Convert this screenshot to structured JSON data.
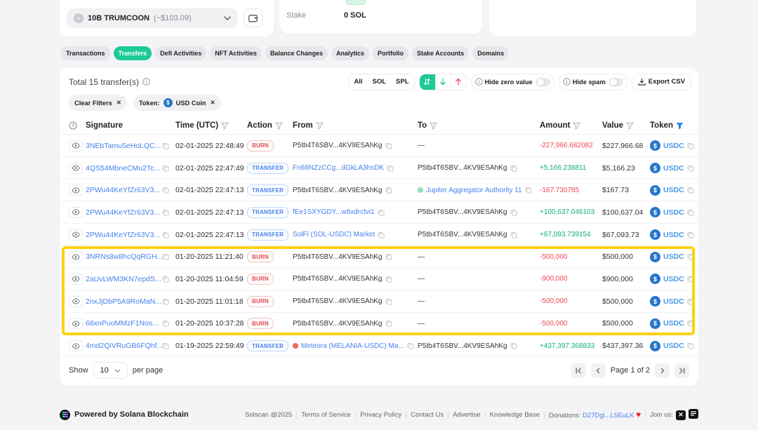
{
  "top": {
    "token_selector": {
      "name": "10B TRUMCOON",
      "value": "(~$103.09)"
    },
    "stake_label": "Stake",
    "stake_value": "0 SOL"
  },
  "tabs": [
    {
      "label": "Transactions",
      "active": false
    },
    {
      "label": "Transfers",
      "active": true
    },
    {
      "label": "Defi Activities",
      "active": false
    },
    {
      "label": "NFT Activities",
      "active": false
    },
    {
      "label": "Balance Changes",
      "active": false
    },
    {
      "label": "Analytics",
      "active": false
    },
    {
      "label": "Portfolio",
      "active": false
    },
    {
      "label": "Stake Accounts",
      "active": false
    },
    {
      "label": "Domains",
      "active": false
    }
  ],
  "controls": {
    "total_label": "Total 15 transfer(s)",
    "segments": [
      "All",
      "SOL",
      "SPL"
    ],
    "hide_zero_label": "Hide zero value",
    "hide_spam_label": "Hide spam",
    "export_label": "Export CSV"
  },
  "filters": {
    "clear_label": "Clear Filters",
    "token_chip_prefix": "Token:",
    "token_chip_value": "USD Coin"
  },
  "table": {
    "columns": [
      "Signature",
      "Time (UTC)",
      "Action",
      "From",
      "To",
      "Amount",
      "Value",
      "Token"
    ],
    "rows": [
      {
        "signature": "3NEbTamu5eHoLQC...",
        "time": "02-01-2025 22:48:49",
        "action": "BURN",
        "from": {
          "text": "P5tb4T6SBV...4KV9ESAhKg",
          "link": false
        },
        "to": {
          "dash": true
        },
        "amount": "-227,966.682082",
        "dir": "neg",
        "value": "$227,966.68",
        "token": "USDC",
        "highlight": false
      },
      {
        "signature": "4QS54MbneCMu2Tc...",
        "time": "02-01-2025 22:47:49",
        "action": "TRANSFER",
        "from": {
          "text": "Fn68NZzCCg...dGkLA3hsDK",
          "link": true
        },
        "to": {
          "text": "P5tb4T6SBV...4KV9ESAhKg",
          "link": false
        },
        "amount": "+5,166.238811",
        "dir": "pos",
        "value": "$5,166.23",
        "token": "USDC",
        "highlight": false
      },
      {
        "signature": "2PWu44KeYfZr63V3...",
        "time": "02-01-2025 22:47:13",
        "action": "TRANSFER",
        "from": {
          "text": "P5tb4T6SBV...4KV9ESAhKg",
          "link": false
        },
        "to": {
          "text": "Jupiter Aggregator Authority 11",
          "link": true,
          "dot": "#8de0c0"
        },
        "amount": "-167.730785",
        "dir": "neg",
        "value": "$167.73",
        "token": "USDC",
        "highlight": false
      },
      {
        "signature": "2PWu44KeYfZr63V3...",
        "time": "02-01-2025 22:47:13",
        "action": "TRANSFER",
        "from": {
          "text": "fEe1SXYGDY...w8xdrctvi1",
          "link": true
        },
        "to": {
          "text": "P5tb4T6SBV...4KV9ESAhKg",
          "link": false
        },
        "amount": "+100,637.046103",
        "dir": "pos",
        "value": "$100,637.04",
        "token": "USDC",
        "highlight": false
      },
      {
        "signature": "2PWu44KeYfZr63V3...",
        "time": "02-01-2025 22:47:13",
        "action": "TRANSFER",
        "from": {
          "text": "SolFi (SOL-USDC) Market",
          "link": true
        },
        "to": {
          "text": "P5tb4T6SBV...4KV9ESAhKg",
          "link": false
        },
        "amount": "+67,093.739154",
        "dir": "pos",
        "value": "$67,093.73",
        "token": "USDC",
        "highlight": false
      },
      {
        "signature": "3NRNs8w8hcQqRGH...",
        "time": "01-20-2025 11:21:40",
        "action": "BURN",
        "from": {
          "text": "P5tb4T6SBV...4KV9ESAhKg",
          "link": false
        },
        "to": {
          "dash": true
        },
        "amount": "-500,000",
        "dir": "neg",
        "value": "$500,000",
        "token": "USDC",
        "highlight": true
      },
      {
        "signature": "2aUvLWM3KN7epdS...",
        "time": "01-20-2025 11:04:59",
        "action": "BURN",
        "from": {
          "text": "P5tb4T6SBV...4KV9ESAhKg",
          "link": false
        },
        "to": {
          "dash": true
        },
        "amount": "-900,000",
        "dir": "neg",
        "value": "$900,000",
        "token": "USDC",
        "highlight": true
      },
      {
        "signature": "2nxJjDbP5A9RoMaN...",
        "time": "01-20-2025 11:01:18",
        "action": "BURN",
        "from": {
          "text": "P5tb4T6SBV...4KV9ESAhKg",
          "link": false
        },
        "to": {
          "dash": true
        },
        "amount": "-500,000",
        "dir": "neg",
        "value": "$500,000",
        "token": "USDC",
        "highlight": true
      },
      {
        "signature": "68xnPuoMMzF1Nos...",
        "time": "01-20-2025 10:37:28",
        "action": "BURN",
        "from": {
          "text": "P5tb4T6SBV...4KV9ESAhKg",
          "link": false
        },
        "to": {
          "dash": true
        },
        "amount": "-500,000",
        "dir": "neg",
        "value": "$500,000",
        "token": "USDC",
        "highlight": true
      },
      {
        "signature": "4md2QiVRuGB6FQhf...",
        "time": "01-19-2025 22:59:49",
        "action": "TRANSFER",
        "from": {
          "text": "Meteora (MELANIA-USDC) Ma...",
          "link": true,
          "dot": "#ef6a5a"
        },
        "to": {
          "text": "P5tb4T6SBV...4KV9ESAhKg",
          "link": false
        },
        "amount": "+437,397.368833",
        "dir": "pos",
        "value": "$437,397.36",
        "token": "USDC",
        "highlight": false
      }
    ]
  },
  "pagination": {
    "show_label": "Show",
    "page_size": "10",
    "per_page_label": "per page",
    "page_label": "Page 1 of 2"
  },
  "footer": {
    "powered": "Powered by Solana Blockchain",
    "links": [
      "Solscan @2025",
      "Terms of Service",
      "Privacy Policy",
      "Contact Us",
      "Advertise",
      "Knowledge Base"
    ],
    "donations_label": "Donations:",
    "donations_address": "D27Dgi...L5EuLK",
    "join_label": "Join us:"
  },
  "colors": {
    "accent_green": "#1dc997",
    "link_blue": "#4582ec",
    "negative_red": "#ef4655",
    "positive_green": "#0fae74",
    "usdc_blue": "#2775ca",
    "highlight_yellow": "#fcd116"
  }
}
